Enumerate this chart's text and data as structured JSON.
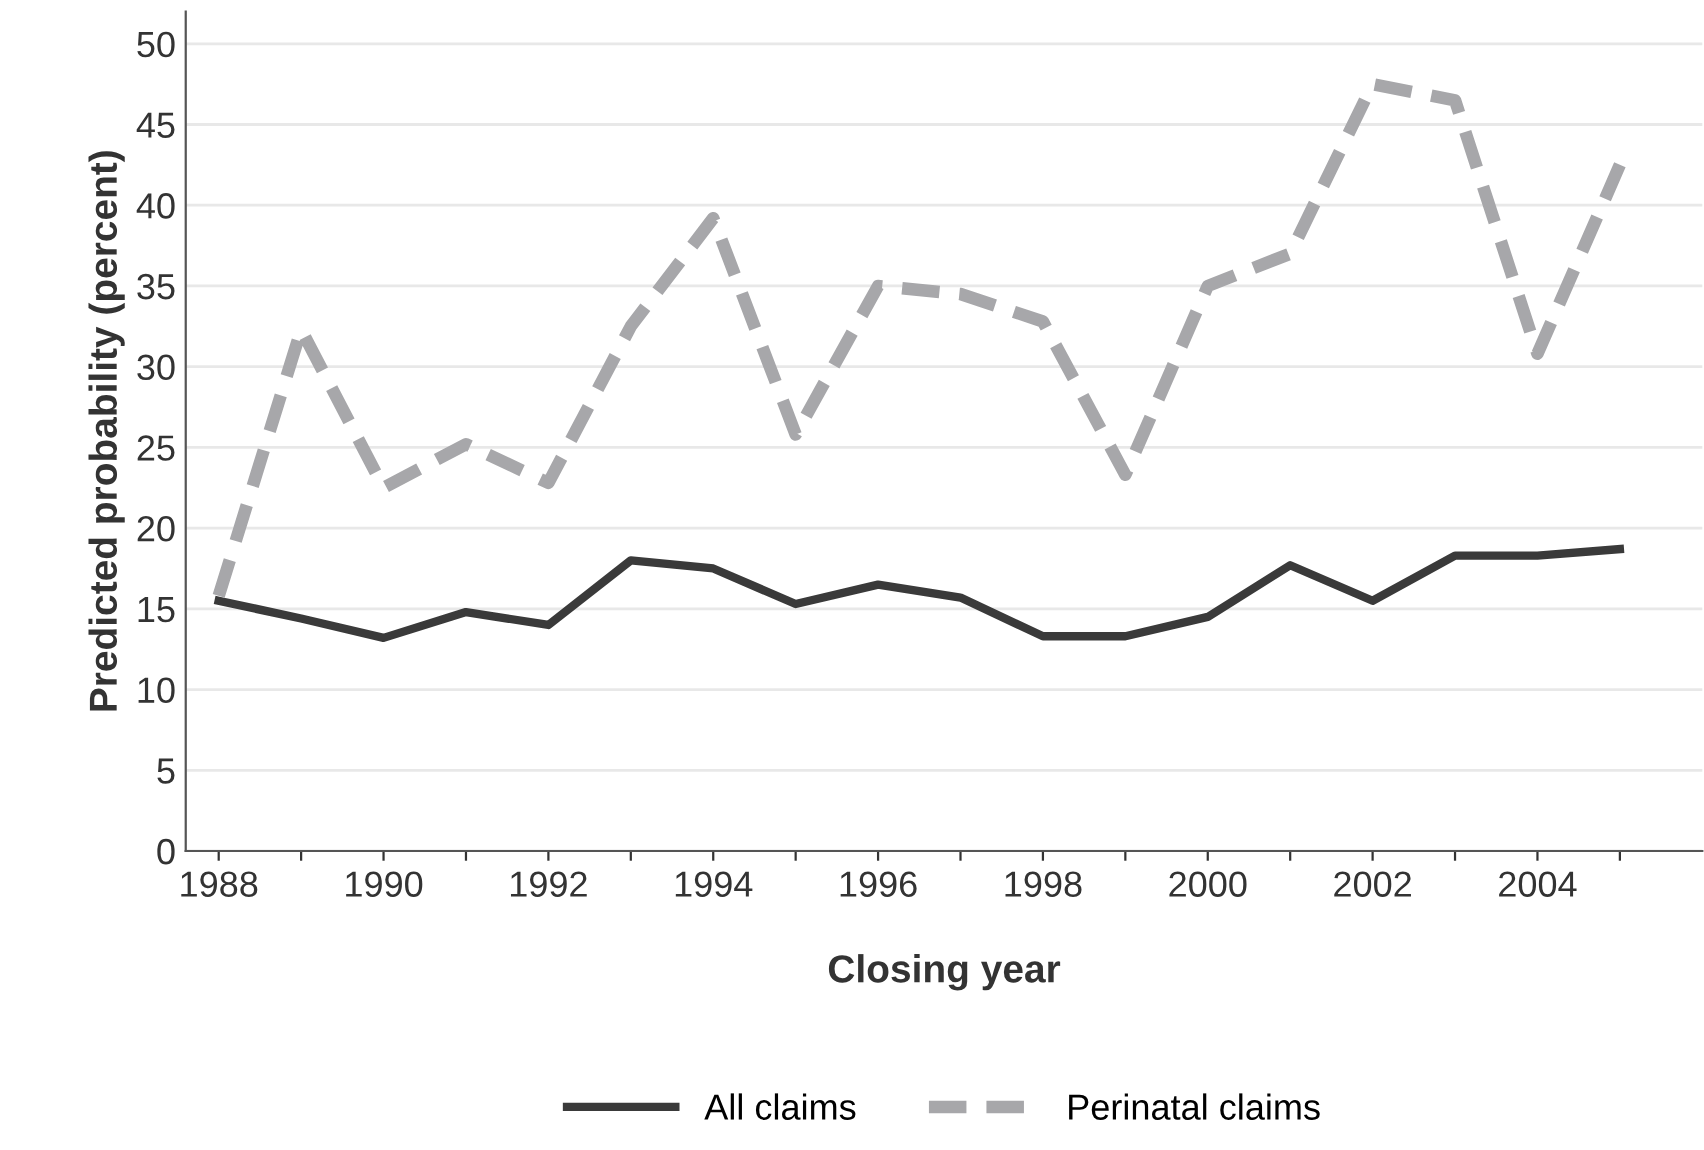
{
  "chart_data": {
    "type": "line",
    "xlabel": "Closing year",
    "ylabel": "Predicted probability (percent)",
    "x": [
      1988,
      1989,
      1990,
      1991,
      1992,
      1993,
      1994,
      1995,
      1996,
      1997,
      1998,
      1999,
      2000,
      2001,
      2002,
      2003,
      2004,
      2005
    ],
    "series": [
      {
        "name": "All claims",
        "color": "#3a3a3a",
        "line_style": "solid",
        "values": [
          15.5,
          14.4,
          13.2,
          14.8,
          14.0,
          18.0,
          17.5,
          15.3,
          16.5,
          15.7,
          13.3,
          13.3,
          14.5,
          17.7,
          15.5,
          18.3,
          18.3,
          18.7
        ]
      },
      {
        "name": "Perinatal claims",
        "color": "#a7a7aa",
        "line_style": "dashed",
        "values": [
          15.8,
          32.3,
          22.5,
          25.2,
          22.8,
          32.5,
          39.2,
          25.8,
          35.0,
          34.5,
          32.8,
          23.3,
          35.0,
          37.0,
          47.5,
          46.5,
          30.8,
          42.5
        ]
      }
    ],
    "xlim": [
      1987.6,
      2006
    ],
    "xticks": [
      {
        "value": 1988,
        "label": "1988"
      },
      {
        "value": 1989,
        "label": null
      },
      {
        "value": 1990,
        "label": "1990"
      },
      {
        "value": 1991,
        "label": null
      },
      {
        "value": 1992,
        "label": "1992"
      },
      {
        "value": 1993,
        "label": null
      },
      {
        "value": 1994,
        "label": "1994"
      },
      {
        "value": 1995,
        "label": null
      },
      {
        "value": 1996,
        "label": "1996"
      },
      {
        "value": 1997,
        "label": null
      },
      {
        "value": 1998,
        "label": "1998"
      },
      {
        "value": 1999,
        "label": null
      },
      {
        "value": 2000,
        "label": "2000"
      },
      {
        "value": 2001,
        "label": null
      },
      {
        "value": 2002,
        "label": "2002"
      },
      {
        "value": 2003,
        "label": null
      },
      {
        "value": 2004,
        "label": "2004"
      },
      {
        "value": 2005,
        "label": null
      }
    ],
    "ylim": [
      0,
      52
    ],
    "yticks": [
      0,
      5,
      10,
      15,
      20,
      25,
      30,
      35,
      40,
      45,
      50
    ],
    "grid": "y",
    "legend": "bottom"
  }
}
